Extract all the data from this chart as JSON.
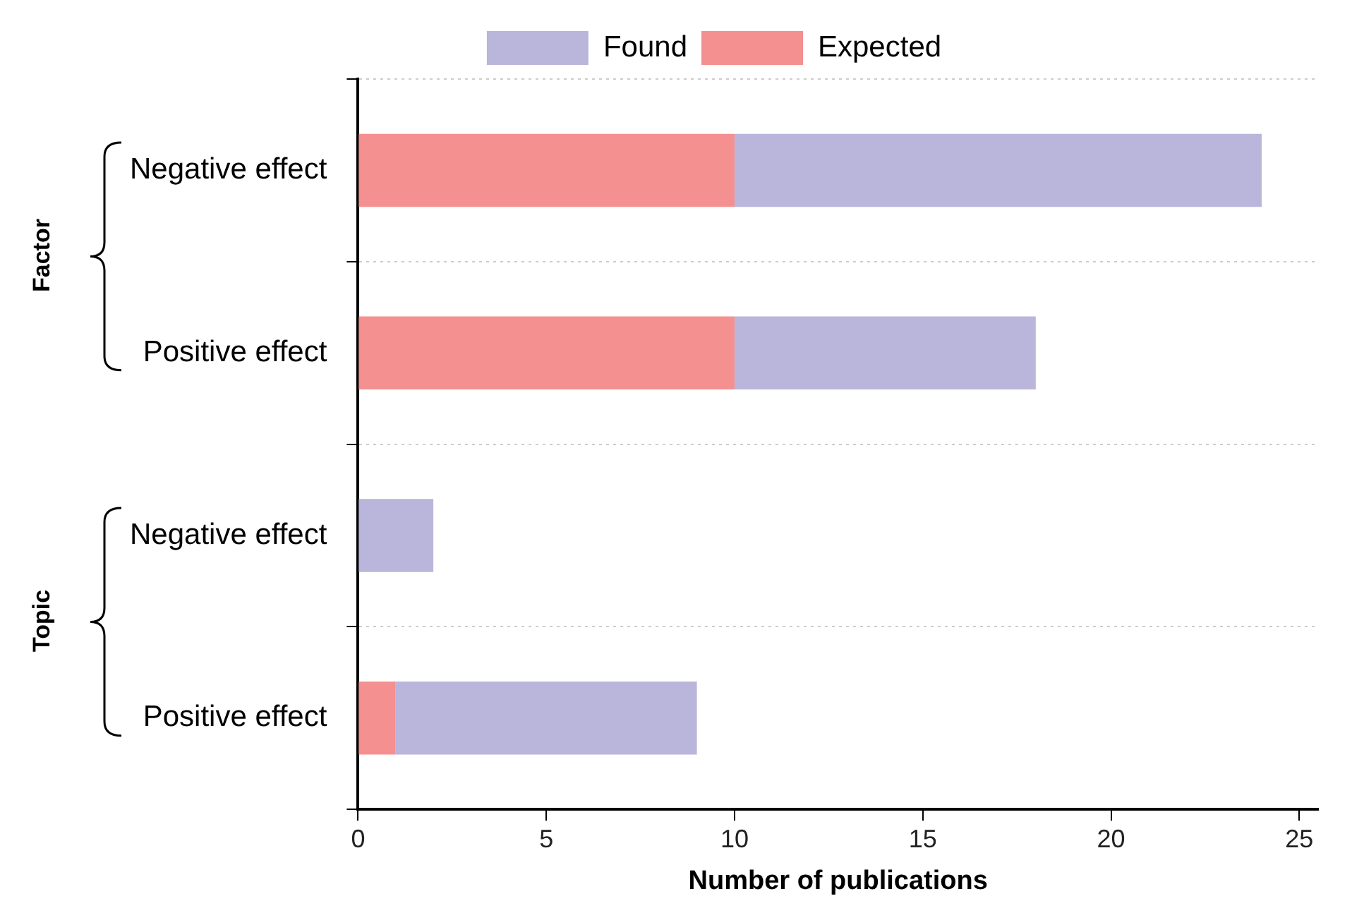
{
  "chart_data": {
    "type": "bar",
    "orientation": "horizontal",
    "stacked": true,
    "categories": [
      "Negative effect",
      "Positive effect",
      "Negative effect",
      "Positive effect"
    ],
    "series": [
      {
        "name": "Expected",
        "color": "#f49190",
        "values": [
          10,
          10,
          0,
          1
        ]
      },
      {
        "name": "Found",
        "color": "#bab5da",
        "values": [
          14,
          8,
          2,
          8
        ]
      }
    ],
    "xlabel": "Number of publications",
    "xlim": [
      0,
      25.5
    ],
    "xticks": [
      0,
      5,
      10,
      15,
      20,
      25
    ],
    "grid": "y",
    "legend": "top",
    "annotations": [
      "Factor",
      "Topic"
    ]
  }
}
